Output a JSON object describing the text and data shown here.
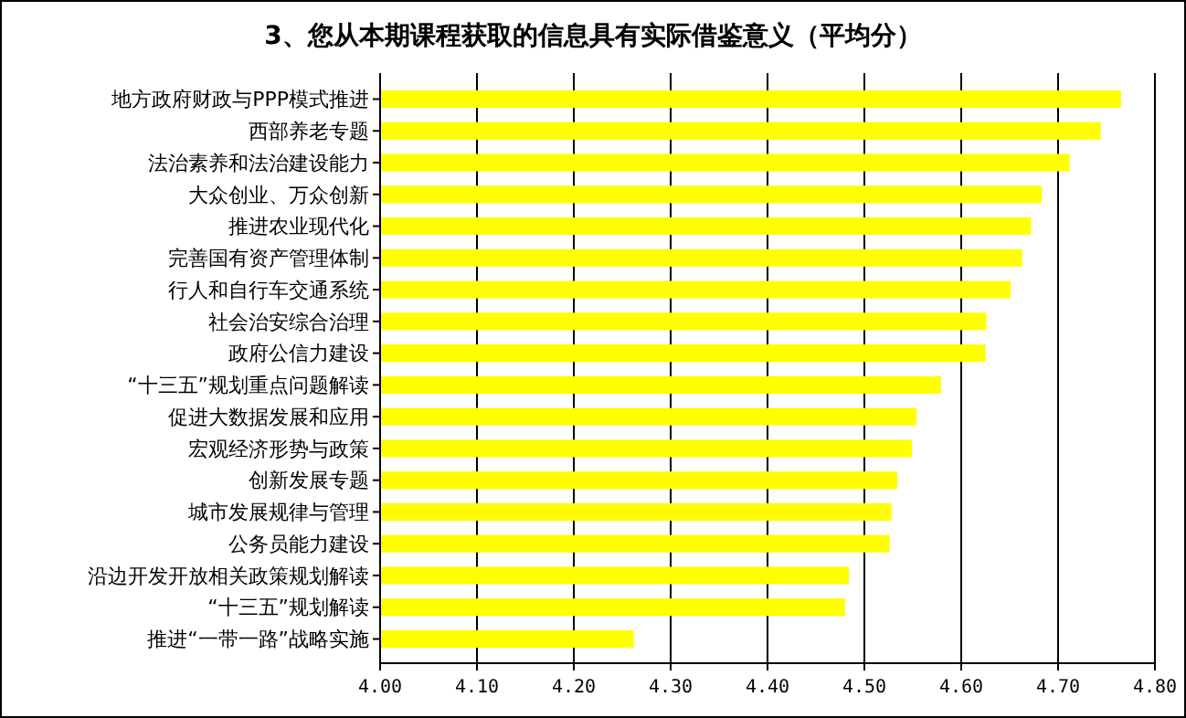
{
  "chart_data": {
    "type": "bar",
    "orientation": "horizontal",
    "title": "3、您从本期课程获取的信息具有实际借鉴意义（平均分）",
    "categories": [
      "地方政府财政与PPP模式推进",
      "西部养老专题",
      "法治素养和法治建设能力",
      "大众创业、万众创新",
      "推进农业现代化",
      "完善国有资产管理体制",
      "行人和自行车交通系统",
      "社会治安综合治理",
      "政府公信力建设",
      "“十三五”规划重点问题解读",
      "促进大数据发展和应用",
      "宏观经济形势与政策",
      "创新发展专题",
      "城市发展规律与管理",
      "公务员能力建设",
      "沿边开发开放相关政策规划解读",
      "“十三五”规划解读",
      "推进“一带一路”战略实施"
    ],
    "values": [
      4.765,
      4.744,
      4.712,
      4.683,
      4.672,
      4.663,
      4.651,
      4.626,
      4.625,
      4.579,
      4.554,
      4.549,
      4.534,
      4.528,
      4.526,
      4.484,
      4.48,
      4.262
    ],
    "color": "#ffff00",
    "xlim": [
      4,
      4.8
    ],
    "xticks": [
      {
        "value": 4,
        "label": "4.00"
      },
      {
        "value": 4.1,
        "label": "4.10"
      },
      {
        "value": 4.2,
        "label": "4.20"
      },
      {
        "value": 4.3,
        "label": "4.30"
      },
      {
        "value": 4.4,
        "label": "4.40"
      },
      {
        "value": 4.5,
        "label": "4.50"
      },
      {
        "value": 4.6,
        "label": "4.60"
      },
      {
        "value": 4.7,
        "label": "4.70"
      },
      {
        "value": 4.8,
        "label": "4.80"
      }
    ],
    "grid": "x"
  }
}
